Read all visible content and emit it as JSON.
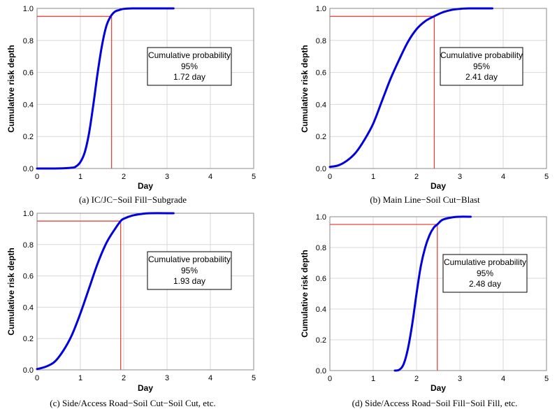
{
  "chart_data": [
    {
      "type": "line",
      "caption": "(a) IC/JC−Soil Fill−Subgrade",
      "xlabel": "Day",
      "ylabel": "Cumulative risk depth",
      "xlim": [
        0,
        5
      ],
      "ylim": [
        0,
        1.0
      ],
      "xticks": [
        "0",
        "1",
        "2",
        "3",
        "4",
        "5"
      ],
      "yticks": [
        "0.0",
        "0.2",
        "0.4",
        "0.6",
        "0.8",
        "1.0"
      ],
      "grid": true,
      "curve_color": "#0000e0",
      "ref_color": "#e8463c",
      "x": [
        0,
        0.5,
        0.8,
        0.9,
        1.0,
        1.1,
        1.2,
        1.3,
        1.4,
        1.5,
        1.6,
        1.7,
        1.8,
        1.9,
        2.0,
        2.2,
        2.5,
        3.15
      ],
      "y": [
        0,
        0.0005,
        0.005,
        0.013,
        0.04,
        0.1,
        0.22,
        0.4,
        0.6,
        0.77,
        0.89,
        0.95,
        0.98,
        0.99,
        0.997,
        1.0,
        1.0,
        1.0
      ],
      "marker": {
        "x": 1.72,
        "y": 0.95
      },
      "annotation": {
        "title": "Cumulative probability",
        "percent": "95%",
        "value": "1.72 day"
      }
    },
    {
      "type": "line",
      "caption": "(b) Main Line−Soil Cut−Blast",
      "xlabel": "Day",
      "ylabel": "Cumulative risk depth",
      "xlim": [
        0,
        5
      ],
      "ylim": [
        0,
        1.0
      ],
      "xticks": [
        "0",
        "1",
        "2",
        "3",
        "4",
        "5"
      ],
      "yticks": [
        "0.0",
        "0.2",
        "0.4",
        "0.6",
        "0.8",
        "1.0"
      ],
      "grid": true,
      "curve_color": "#0000e0",
      "ref_color": "#e8463c",
      "x": [
        0,
        0.2,
        0.4,
        0.6,
        0.8,
        1.0,
        1.2,
        1.4,
        1.6,
        1.8,
        2.0,
        2.2,
        2.4,
        2.6,
        2.8,
        3.0,
        3.2,
        3.75
      ],
      "y": [
        0.01,
        0.02,
        0.05,
        0.1,
        0.18,
        0.28,
        0.42,
        0.56,
        0.68,
        0.79,
        0.87,
        0.92,
        0.95,
        0.975,
        0.99,
        0.997,
        1.0,
        1.0
      ],
      "marker": {
        "x": 2.41,
        "y": 0.95
      },
      "annotation": {
        "title": "Cumulative probability",
        "percent": "95%",
        "value": "2.41 day"
      }
    },
    {
      "type": "line",
      "caption": "(c) Side/Access Road−Soil Cut−Soil Cut, etc.",
      "xlabel": "Day",
      "ylabel": "Cumulative risk depth",
      "xlim": [
        0,
        5
      ],
      "ylim": [
        0,
        1.0
      ],
      "xticks": [
        "0",
        "1",
        "2",
        "3",
        "4",
        "5"
      ],
      "yticks": [
        "0.0",
        "0.2",
        "0.4",
        "0.6",
        "0.8",
        "1.0"
      ],
      "grid": true,
      "curve_color": "#0000e0",
      "ref_color": "#e8463c",
      "x": [
        0,
        0.2,
        0.4,
        0.6,
        0.8,
        1.0,
        1.2,
        1.4,
        1.6,
        1.8,
        1.93,
        2.0,
        2.2,
        2.4,
        2.6,
        3.15
      ],
      "y": [
        0.005,
        0.02,
        0.05,
        0.12,
        0.22,
        0.36,
        0.52,
        0.68,
        0.81,
        0.9,
        0.95,
        0.965,
        0.985,
        0.995,
        1.0,
        1.0
      ],
      "marker": {
        "x": 1.93,
        "y": 0.95
      },
      "annotation": {
        "title": "Cumulative probability",
        "percent": "95%",
        "value": "1.93 day"
      }
    },
    {
      "type": "line",
      "caption": "(d) Side/Access Road−Soil Fill−Soil Fill, etc.",
      "xlabel": "Day",
      "ylabel": "Cumulative risk depth",
      "xlim": [
        0,
        5
      ],
      "ylim": [
        0,
        1.0
      ],
      "xticks": [
        "0",
        "1",
        "2",
        "3",
        "4",
        "5"
      ],
      "yticks": [
        "0.0",
        "0.2",
        "0.4",
        "0.6",
        "0.8",
        "1.0"
      ],
      "grid": true,
      "curve_color": "#0000e0",
      "ref_color": "#e8463c",
      "x": [
        1.5,
        1.6,
        1.7,
        1.8,
        1.9,
        2.0,
        2.1,
        2.2,
        2.3,
        2.4,
        2.48,
        2.6,
        2.8,
        3.0,
        3.25
      ],
      "y": [
        0,
        0.005,
        0.04,
        0.14,
        0.3,
        0.5,
        0.68,
        0.8,
        0.88,
        0.93,
        0.95,
        0.98,
        0.995,
        1.0,
        1.0
      ],
      "marker": {
        "x": 2.48,
        "y": 0.95
      },
      "annotation": {
        "title": "Cumulative probability",
        "percent": "95%",
        "value": "2.48 day"
      }
    }
  ]
}
